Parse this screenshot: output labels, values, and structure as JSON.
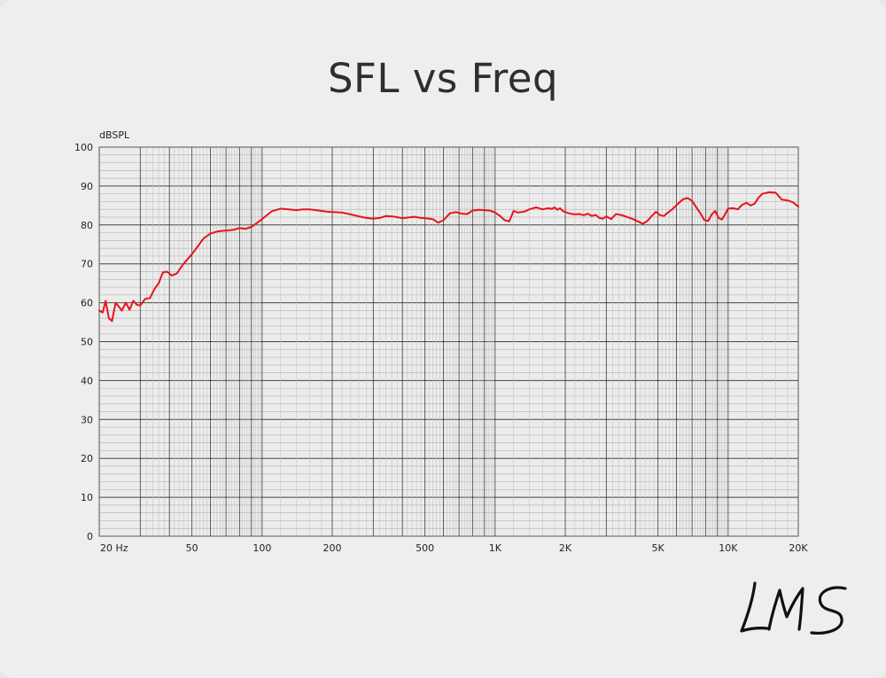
{
  "chart_data": {
    "type": "line",
    "title": "SFL vs Freq",
    "ylabel": "dBSPL",
    "xlabel": "",
    "xscale": "log",
    "xlim": [
      20,
      20000
    ],
    "ylim": [
      0,
      100
    ],
    "grid": true,
    "x_tick_values": [
      20,
      50,
      100,
      200,
      500,
      1000,
      2000,
      5000,
      10000,
      20000
    ],
    "x_tick_labels": [
      "20 Hz",
      "50",
      "100",
      "200",
      "500",
      "1K",
      "2K",
      "5K",
      "10K",
      "20K"
    ],
    "y_tick_values": [
      0,
      10,
      20,
      30,
      40,
      50,
      60,
      70,
      80,
      90,
      100
    ],
    "y_tick_labels": [
      "0",
      "10",
      "20",
      "30",
      "40",
      "50",
      "60",
      "70",
      "80",
      "90",
      "100"
    ],
    "series": [
      {
        "color": "#e8141b",
        "x": [
          20,
          20.7,
          21.3,
          22,
          22.7,
          23.5,
          24.3,
          25,
          26,
          27,
          28,
          29,
          30,
          31.5,
          33,
          34.5,
          36,
          37.5,
          39,
          41,
          43,
          46,
          50,
          53,
          56,
          60,
          64,
          68,
          72,
          76,
          80,
          85,
          90,
          95,
          100,
          110,
          120,
          130,
          140,
          150,
          160,
          170,
          180,
          190,
          200,
          220,
          240,
          260,
          280,
          300,
          320,
          340,
          360,
          380,
          400,
          420,
          450,
          480,
          500,
          540,
          570,
          600,
          640,
          680,
          720,
          760,
          800,
          850,
          900,
          950,
          1000,
          1050,
          1100,
          1150,
          1200,
          1250,
          1300,
          1350,
          1400,
          1500,
          1600,
          1700,
          1750,
          1800,
          1850,
          1900,
          1950,
          2000,
          2100,
          2200,
          2300,
          2400,
          2500,
          2600,
          2700,
          2800,
          2900,
          3000,
          3150,
          3300,
          3500,
          3700,
          3900,
          4100,
          4300,
          4500,
          4700,
          4900,
          5100,
          5300,
          5500,
          5800,
          6100,
          6400,
          6700,
          7000,
          7300,
          7600,
          7900,
          8200,
          8500,
          8800,
          9100,
          9400,
          9700,
          10000,
          10500,
          11000,
          11500,
          12000,
          12500,
          13000,
          13500,
          14000,
          15000,
          16000,
          17000,
          18000,
          19000,
          20000
        ],
        "y": [
          58,
          57.5,
          60.5,
          56,
          55.3,
          60,
          59,
          58,
          60,
          58.2,
          60.5,
          59.5,
          59.3,
          61,
          61.2,
          63.5,
          65,
          67.8,
          68,
          67,
          67.5,
          70,
          72.5,
          74.5,
          76.5,
          77.8,
          78.3,
          78.5,
          78.6,
          78.8,
          79.2,
          79,
          79.5,
          80.5,
          81.5,
          83.5,
          84.2,
          84,
          83.8,
          84,
          84,
          83.8,
          83.6,
          83.4,
          83.3,
          83.2,
          82.7,
          82.2,
          81.8,
          81.6,
          81.8,
          82.3,
          82.2,
          82,
          81.7,
          81.9,
          82.1,
          81.8,
          81.7,
          81.5,
          80.6,
          81.2,
          83,
          83.3,
          82.9,
          82.8,
          83.7,
          83.9,
          83.8,
          83.7,
          83.2,
          82.3,
          81.2,
          80.9,
          83.6,
          83.2,
          83.3,
          83.5,
          84,
          84.5,
          84,
          84.3,
          84.1,
          84.5,
          83.9,
          84.3,
          83.6,
          83.3,
          82.9,
          82.7,
          82.8,
          82.5,
          82.9,
          82.3,
          82.6,
          81.8,
          81.6,
          82.2,
          81.5,
          82.8,
          82.5,
          82,
          81.5,
          80.9,
          80.3,
          81,
          82.3,
          83.4,
          82.5,
          82.3,
          83.1,
          84.2,
          85.5,
          86.6,
          86.9,
          86.2,
          84.5,
          83,
          81.3,
          81,
          82.7,
          83.6,
          81.8,
          81.4,
          82.7,
          84.2,
          84.3,
          84,
          85.2,
          85.7,
          85,
          85.5,
          87,
          88,
          88.4,
          88.3,
          86.5,
          86.3,
          85.8,
          84.7
        ]
      }
    ]
  },
  "logo_text": "LMS"
}
